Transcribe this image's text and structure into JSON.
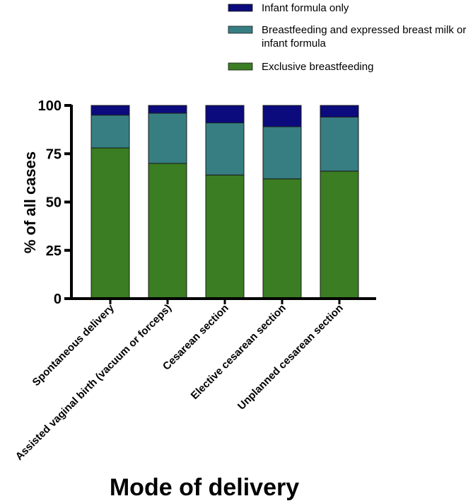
{
  "chart_data": {
    "type": "bar",
    "stacked": true,
    "title": "",
    "xlabel": "Mode of delivery",
    "ylabel": "% of all cases",
    "ylim": [
      0,
      100
    ],
    "yticks": [
      0,
      25,
      50,
      75,
      100
    ],
    "categories": [
      "Spontaneous delivery",
      "Assisted vaginal birth (vacuum or forceps)",
      "Cesarean section",
      "Elective cesarean section",
      "Unplanned cesarean section"
    ],
    "series": [
      {
        "name": "Exclusive breastfeeding",
        "color": "#3a7d22",
        "values": [
          78,
          70,
          64,
          62,
          66
        ]
      },
      {
        "name": "Breastfeeding and expressed breast milk or infant formula",
        "color": "#367e82",
        "values": [
          17,
          26,
          27,
          27,
          28
        ]
      },
      {
        "name": "Infant formula only",
        "color": "#0b0b7e",
        "values": [
          5,
          4,
          9,
          11,
          6
        ]
      }
    ],
    "legend": {
      "placement": "top-right",
      "order": [
        "Infant formula only",
        "Breastfeeding and expressed breast milk or infant formula",
        "Exclusive breastfeeding"
      ],
      "lines": [
        [
          "Infant formula only"
        ],
        [
          "Breastfeeding and expressed breast milk or",
          "infant formula"
        ],
        [
          "Exclusive breastfeeding"
        ]
      ]
    }
  }
}
